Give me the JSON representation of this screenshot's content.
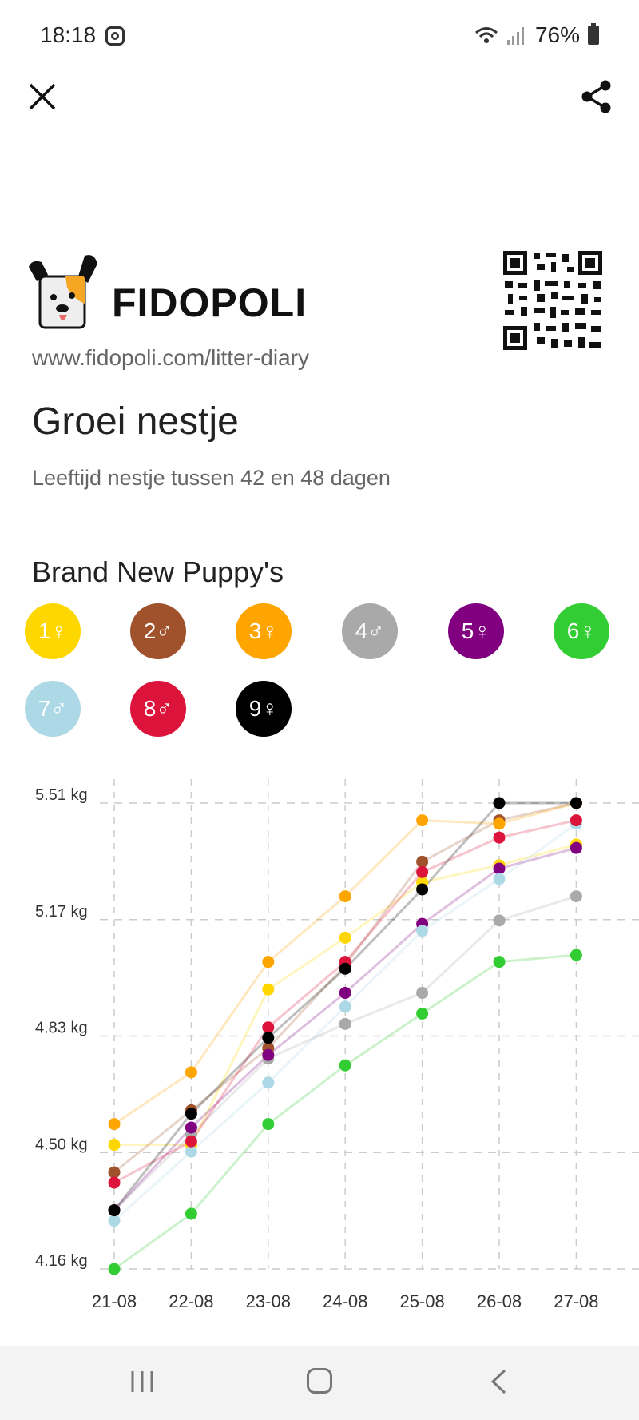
{
  "status_bar": {
    "time": "18:18",
    "battery": "76%"
  },
  "header": {
    "brand": "FIDOPOLI",
    "url": "www.fidopoli.com/litter-diary",
    "title": "Groei nestje",
    "subtitle": "Leeftijd nestje tussen 42 en 48 dagen",
    "litter_name": "Brand New Puppy's"
  },
  "puppies": [
    {
      "label": "1♀",
      "color": "#FFD700"
    },
    {
      "label": "2♂",
      "color": "#A0522D"
    },
    {
      "label": "3♀",
      "color": "#FFA500"
    },
    {
      "label": "4♂",
      "color": "#A9A9A9"
    },
    {
      "label": "5♀",
      "color": "#800080"
    },
    {
      "label": "6♀",
      "color": "#32CD32"
    },
    {
      "label": "7♂",
      "color": "#ADD8E6"
    },
    {
      "label": "8♂",
      "color": "#DC143C"
    },
    {
      "label": "9♀",
      "color": "#000000"
    }
  ],
  "chart_data": {
    "type": "line",
    "categories": [
      "21-08",
      "22-08",
      "23-08",
      "24-08",
      "25-08",
      "26-08",
      "27-08"
    ],
    "y_ticks": [
      "5.51 kg",
      "5.17 kg",
      "4.83 kg",
      "4.50 kg",
      "4.16 kg"
    ],
    "ylim": [
      4.16,
      5.51
    ],
    "grid": true,
    "series": [
      {
        "name": "1♀",
        "color": "#FFD700",
        "values": [
          4.52,
          4.52,
          4.97,
          5.12,
          5.28,
          5.33,
          5.39
        ]
      },
      {
        "name": "2♂",
        "color": "#A0522D",
        "values": [
          4.44,
          4.62,
          4.8,
          5.04,
          5.34,
          5.46,
          5.51
        ]
      },
      {
        "name": "3♀",
        "color": "#FFA500",
        "values": [
          4.58,
          4.73,
          5.05,
          5.24,
          5.46,
          5.45,
          5.51
        ]
      },
      {
        "name": "4♂",
        "color": "#A9A9A9",
        "values": [
          4.33,
          4.55,
          4.77,
          4.87,
          4.96,
          5.17,
          5.24
        ]
      },
      {
        "name": "5♀",
        "color": "#800080",
        "values": [
          4.33,
          4.57,
          4.78,
          4.96,
          5.16,
          5.32,
          5.38
        ]
      },
      {
        "name": "6♀",
        "color": "#32CD32",
        "values": [
          4.16,
          4.32,
          4.58,
          4.75,
          4.9,
          5.05,
          5.07
        ]
      },
      {
        "name": "7♂",
        "color": "#ADD8E6",
        "values": [
          4.3,
          4.5,
          4.7,
          4.92,
          5.14,
          5.29,
          5.45
        ]
      },
      {
        "name": "8♂",
        "color": "#DC143C",
        "values": [
          4.41,
          4.53,
          4.86,
          5.05,
          5.31,
          5.41,
          5.46
        ]
      },
      {
        "name": "9♀",
        "color": "#000000",
        "values": [
          4.33,
          4.61,
          4.83,
          5.03,
          5.26,
          5.51,
          5.51
        ]
      }
    ]
  }
}
